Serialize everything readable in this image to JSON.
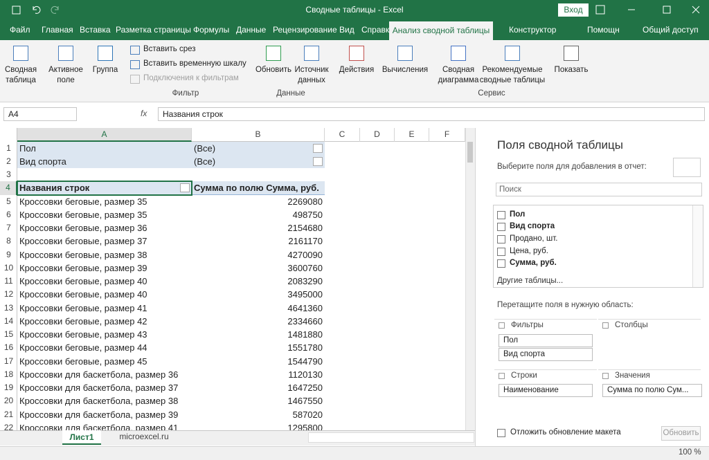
{
  "title_bar": {
    "title": "Сводные таблицы - Excel",
    "login": "Вход"
  },
  "tabs": [
    "Файл",
    "Главная",
    "Вставка",
    "Разметка страницы",
    "Формулы",
    "Данные",
    "Рецензирование",
    "Вид",
    "Справка",
    "Анализ сводной таблицы",
    "Конструктор",
    "Помощн",
    "Общий доступ"
  ],
  "ribbon": {
    "buttons": [
      "Сводная таблица",
      "Активное поле",
      "Группа",
      "Обновить",
      "Источник данных",
      "Действия",
      "Вычисления",
      "Сводная диаграмма",
      "Рекомендуемые сводные таблицы",
      "Показать"
    ],
    "small_buttons": [
      "Вставить срез",
      "Вставить временную шкалу",
      "Подключения к фильтрам"
    ],
    "groups": [
      "Фильтр",
      "Данные",
      "Сервис"
    ]
  },
  "formula_bar": {
    "name_box": "A4",
    "fx": "fx",
    "content": "Названия строк"
  },
  "columns": [
    "A",
    "B",
    "C",
    "D",
    "E",
    "F"
  ],
  "rows": [
    {
      "n": 1,
      "a": "Пол",
      "b": "(Все)"
    },
    {
      "n": 2,
      "a": "Вид спорта",
      "b": "(Все)"
    },
    {
      "n": 3
    },
    {
      "n": 4,
      "a": "Названия строк",
      "b": "Сумма по полю Сумма, руб."
    },
    {
      "n": 5,
      "a": "Кроссовки беговые, размер 35",
      "b": 2269080
    },
    {
      "n": 6,
      "a": "Кроссовки беговые, размер 35",
      "b": 498750
    },
    {
      "n": 7,
      "a": "Кроссовки беговые, размер 36",
      "b": 2154680
    },
    {
      "n": 8,
      "a": "Кроссовки беговые, размер 37",
      "b": 2161170
    },
    {
      "n": 9,
      "a": "Кроссовки беговые, размер 38",
      "b": 4270090
    },
    {
      "n": 10,
      "a": "Кроссовки беговые, размер 39",
      "b": 3600760
    },
    {
      "n": 11,
      "a": "Кроссовки беговые, размер 40",
      "b": 2083290
    },
    {
      "n": 12,
      "a": "Кроссовки беговые, размер 40",
      "b": 3495000
    },
    {
      "n": 13,
      "a": "Кроссовки беговые, размер 41",
      "b": 4641360
    },
    {
      "n": 14,
      "a": "Кроссовки беговые, размер 42",
      "b": 2334660
    },
    {
      "n": 15,
      "a": "Кроссовки беговые, размер 43",
      "b": 1481880
    },
    {
      "n": 16,
      "a": "Кроссовки беговые, размер 44",
      "b": 1551780
    },
    {
      "n": 17,
      "a": "Кроссовки беговые, размер 45",
      "b": 1544790
    },
    {
      "n": 18,
      "a": "Кроссовки для баскетбола, размер 36",
      "b": 1120130
    },
    {
      "n": 19,
      "a": "Кроссовки для баскетбола, размер 37",
      "b": 1647250
    },
    {
      "n": 20,
      "a": "Кроссовки для баскетбола, размер 38",
      "b": 1467550
    },
    {
      "n": 21,
      "a": "Кроссовки для баскетбола, размер 39",
      "b": 587020
    },
    {
      "n": 22,
      "a": "Кроссовки для баскетбола, размер 41",
      "b": 1295800
    }
  ],
  "sheet_tabs": [
    "Лист1",
    "microexcel.ru"
  ],
  "status_bar": {
    "zoom": "100 %"
  },
  "pane": {
    "title": "Поля сводной таблицы",
    "subtitle": "Выберите поля для добавления в отчет:",
    "search": "Поиск",
    "fields": [
      {
        "label": "Пол",
        "checked": true
      },
      {
        "label": "Вид спорта",
        "checked": true
      },
      {
        "label": "Продано, шт.",
        "checked": false
      },
      {
        "label": "Цена, руб.",
        "checked": false
      },
      {
        "label": "Сумма, руб.",
        "checked": true
      }
    ],
    "more_tables": "Другие таблицы...",
    "drag_hint": "Перетащите поля в нужную область:",
    "areas": {
      "filters": {
        "label": "Фильтры",
        "items": [
          "Пол",
          "Вид спорта"
        ]
      },
      "columns": {
        "label": "Столбцы",
        "items": []
      },
      "rows": {
        "label": "Строки",
        "items": [
          "Наименование"
        ]
      },
      "values": {
        "label": "Значения",
        "items": [
          "Сумма по полю Сум..."
        ]
      }
    },
    "defer": "Отложить обновление макета",
    "update": "Обновить"
  }
}
